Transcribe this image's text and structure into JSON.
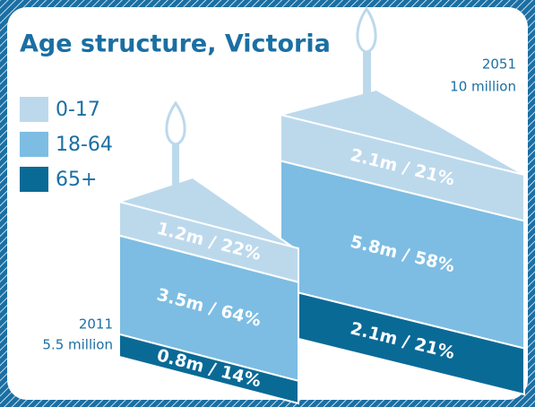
{
  "chart_data": {
    "type": "cake",
    "title": "Age structure, Victoria",
    "categories": [
      "2011",
      "2051"
    ],
    "totals": [
      "5.5 million",
      "10 million"
    ],
    "series": [
      {
        "name": "0-17",
        "color": "#bcd9ec",
        "values": [
          1.2,
          2.1
        ],
        "value_labels": [
          "1.2m / 22%",
          "2.1m / 21%"
        ]
      },
      {
        "name": "18-64",
        "color": "#7dbde3",
        "values": [
          3.5,
          5.8
        ],
        "value_labels": [
          "3.5m / 64%",
          "5.8m / 58%"
        ]
      },
      {
        "name": "65+",
        "color": "#0a6a96",
        "values": [
          0.8,
          2.1
        ],
        "value_labels": [
          "0.8m / 14%",
          "2.1m / 21%"
        ]
      }
    ]
  }
}
